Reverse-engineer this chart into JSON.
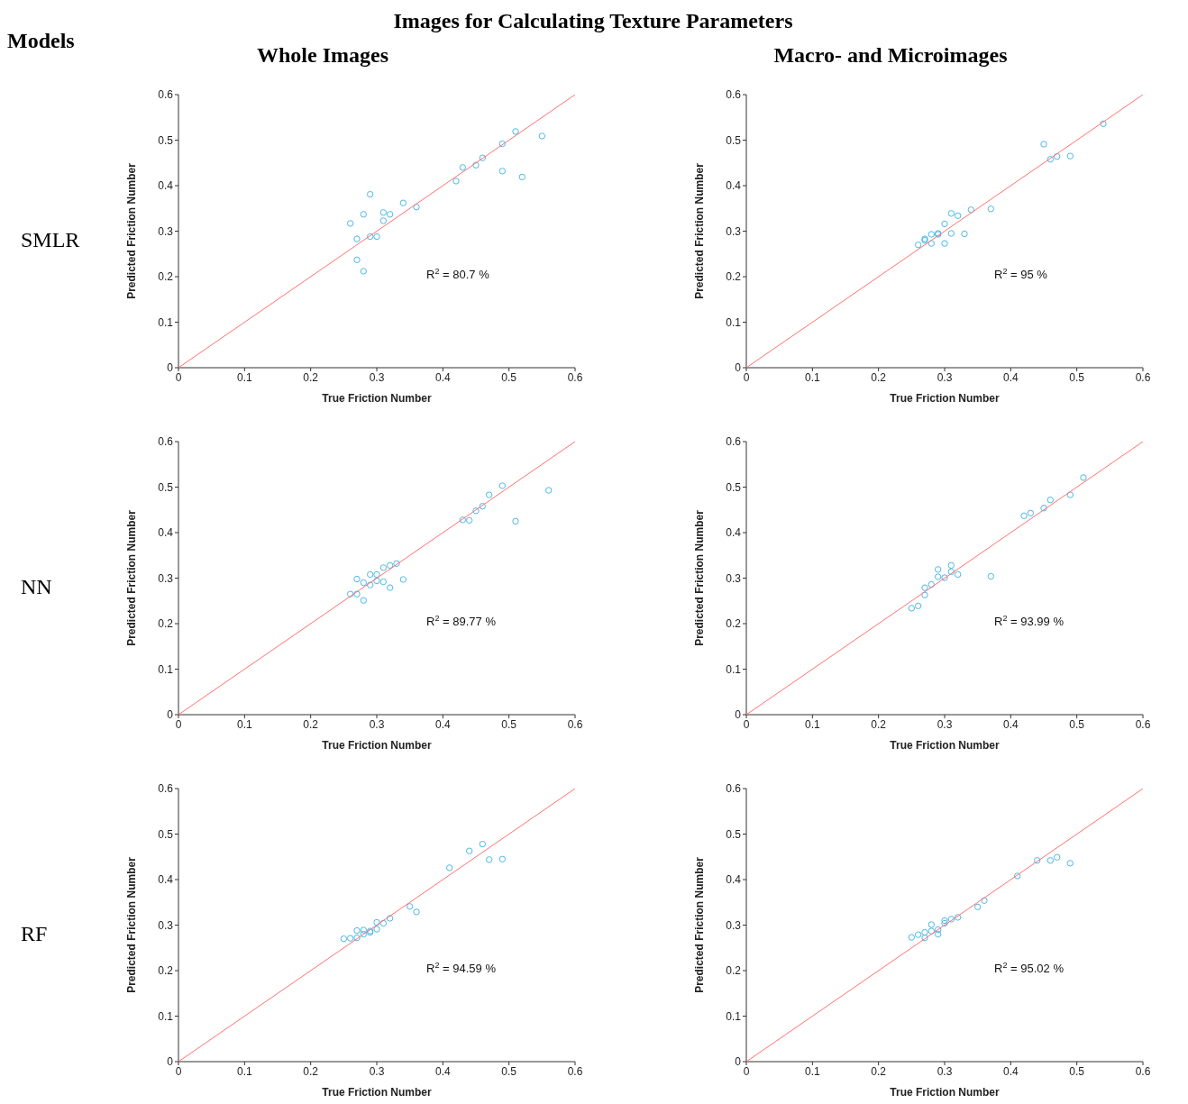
{
  "chart_data": [
    {
      "type": "scatter",
      "title": "Images for Calculating Texture Parameters",
      "subtitle": "Whole Images",
      "xlabel": "True Friction Number",
      "ylabel": "Predicted Friction Number",
      "annotations": [
        "Models",
        "SMLR",
        "R$^{2}$ = 80.7 %"
      ],
      "xlim": [
        0,
        0.6
      ],
      "ylim": [
        0,
        0.6
      ],
      "xticks": [
        0,
        0.1,
        0.2,
        0.3,
        0.4,
        0.5,
        0.6
      ],
      "yticks": [
        0,
        0.1,
        0.2,
        0.3,
        0.4,
        0.5,
        0.6
      ],
      "marker": "circle",
      "grid": false,
      "legend": false,
      "series": [
        {
          "type": "scatter",
          "color": "#4db8e8",
          "x": [
            0.26,
            0.27,
            0.27,
            0.28,
            0.28,
            0.29,
            0.29,
            0.3,
            0.31,
            0.31,
            0.32,
            0.34,
            0.36,
            0.42,
            0.43,
            0.45,
            0.46,
            0.49,
            0.49,
            0.51,
            0.52,
            0.55
          ],
          "values": [
            0.317,
            0.283,
            0.237,
            0.337,
            0.212,
            0.381,
            0.288,
            0.288,
            0.341,
            0.323,
            0.337,
            0.362,
            0.353,
            0.41,
            0.44,
            0.445,
            0.461,
            0.492,
            0.432,
            0.519,
            0.419,
            0.509
          ]
        },
        {
          "type": "line",
          "color": "#ff7070",
          "marker": "none",
          "x": [
            0,
            0.6
          ],
          "values": [
            0,
            0.6
          ]
        }
      ]
    },
    {
      "type": "scatter",
      "subtitle": "Macro- and Microimages",
      "xlabel": "True Friction Number",
      "ylabel": "Predicted Friction Number",
      "annotations": [
        "R$^{2}$ = 95 %"
      ],
      "xlim": [
        0,
        0.6
      ],
      "ylim": [
        0,
        0.6
      ],
      "xticks": [
        0,
        0.1,
        0.2,
        0.3,
        0.4,
        0.5,
        0.6
      ],
      "yticks": [
        0,
        0.1,
        0.2,
        0.3,
        0.4,
        0.5,
        0.6
      ],
      "marker": "circle",
      "grid": false,
      "legend": false,
      "series": [
        {
          "type": "scatter",
          "color": "#4db8e8",
          "x": [
            0.26,
            0.27,
            0.27,
            0.28,
            0.28,
            0.29,
            0.29,
            0.3,
            0.3,
            0.31,
            0.31,
            0.32,
            0.33,
            0.34,
            0.37,
            0.45,
            0.46,
            0.47,
            0.49,
            0.54
          ],
          "values": [
            0.27,
            0.28,
            0.283,
            0.293,
            0.273,
            0.293,
            0.295,
            0.316,
            0.273,
            0.339,
            0.295,
            0.334,
            0.294,
            0.347,
            0.349,
            0.491,
            0.458,
            0.464,
            0.465,
            0.536
          ]
        },
        {
          "type": "line",
          "color": "#ff7070",
          "marker": "none",
          "x": [
            0,
            0.6
          ],
          "values": [
            0,
            0.6
          ]
        }
      ]
    },
    {
      "type": "scatter",
      "xlabel": "True Friction Number",
      "ylabel": "Predicted Friction Number",
      "annotations": [
        "NN",
        "R$^{2}$ = 89.77 %"
      ],
      "xlim": [
        0,
        0.6
      ],
      "ylim": [
        0,
        0.6
      ],
      "xticks": [
        0,
        0.1,
        0.2,
        0.3,
        0.4,
        0.5,
        0.6
      ],
      "yticks": [
        0,
        0.1,
        0.2,
        0.3,
        0.4,
        0.5,
        0.6
      ],
      "marker": "circle",
      "grid": false,
      "legend": false,
      "series": [
        {
          "type": "scatter",
          "color": "#4db8e8",
          "x": [
            0.26,
            0.27,
            0.27,
            0.28,
            0.28,
            0.29,
            0.29,
            0.3,
            0.3,
            0.31,
            0.31,
            0.32,
            0.32,
            0.33,
            0.34,
            0.43,
            0.44,
            0.45,
            0.46,
            0.47,
            0.49,
            0.51,
            0.56
          ],
          "values": [
            0.265,
            0.298,
            0.265,
            0.29,
            0.251,
            0.308,
            0.285,
            0.308,
            0.294,
            0.323,
            0.292,
            0.328,
            0.279,
            0.332,
            0.297,
            0.428,
            0.427,
            0.448,
            0.458,
            0.483,
            0.503,
            0.425,
            0.493
          ]
        },
        {
          "type": "line",
          "color": "#ff7070",
          "marker": "none",
          "x": [
            0,
            0.6
          ],
          "values": [
            0,
            0.6
          ]
        }
      ]
    },
    {
      "type": "scatter",
      "xlabel": "True Friction Number",
      "ylabel": "Predicted Friction Number",
      "annotations": [
        "R$^{2}$ = 93.99 %"
      ],
      "xlim": [
        0,
        0.6
      ],
      "ylim": [
        0,
        0.6
      ],
      "xticks": [
        0,
        0.1,
        0.2,
        0.3,
        0.4,
        0.5,
        0.6
      ],
      "yticks": [
        0,
        0.1,
        0.2,
        0.3,
        0.4,
        0.5,
        0.6
      ],
      "marker": "circle",
      "grid": false,
      "legend": false,
      "series": [
        {
          "type": "scatter",
          "color": "#4db8e8",
          "x": [
            0.25,
            0.26,
            0.27,
            0.27,
            0.28,
            0.29,
            0.29,
            0.3,
            0.31,
            0.31,
            0.32,
            0.37,
            0.42,
            0.43,
            0.45,
            0.46,
            0.49,
            0.51
          ],
          "values": [
            0.234,
            0.239,
            0.263,
            0.279,
            0.286,
            0.319,
            0.303,
            0.301,
            0.328,
            0.314,
            0.308,
            0.304,
            0.437,
            0.443,
            0.454,
            0.472,
            0.483,
            0.521
          ]
        },
        {
          "type": "line",
          "color": "#ff7070",
          "marker": "none",
          "x": [
            0,
            0.6
          ],
          "values": [
            0,
            0.6
          ]
        }
      ]
    },
    {
      "type": "scatter",
      "xlabel": "True Friction Number",
      "ylabel": "Predicted Friction Number",
      "annotations": [
        "RF",
        "R$^{2}$ = 94.59 %"
      ],
      "xlim": [
        0,
        0.6
      ],
      "ylim": [
        0,
        0.6
      ],
      "xticks": [
        0,
        0.1,
        0.2,
        0.3,
        0.4,
        0.5,
        0.6
      ],
      "yticks": [
        0,
        0.1,
        0.2,
        0.3,
        0.4,
        0.5,
        0.6
      ],
      "marker": "circle",
      "grid": false,
      "legend": false,
      "series": [
        {
          "type": "scatter",
          "color": "#4db8e8",
          "x": [
            0.25,
            0.26,
            0.27,
            0.27,
            0.28,
            0.28,
            0.29,
            0.29,
            0.3,
            0.3,
            0.31,
            0.32,
            0.35,
            0.36,
            0.41,
            0.44,
            0.46,
            0.47,
            0.49
          ],
          "values": [
            0.27,
            0.271,
            0.272,
            0.288,
            0.289,
            0.28,
            0.284,
            0.287,
            0.306,
            0.291,
            0.304,
            0.315,
            0.341,
            0.329,
            0.426,
            0.463,
            0.478,
            0.444,
            0.445
          ]
        },
        {
          "type": "line",
          "color": "#ff7070",
          "marker": "none",
          "x": [
            0,
            0.6
          ],
          "values": [
            0,
            0.6
          ]
        }
      ]
    },
    {
      "type": "scatter",
      "xlabel": "True Friction Number",
      "ylabel": "Predicted Friction Number",
      "annotations": [
        "R$^{2}$ = 95.02 %"
      ],
      "xlim": [
        0,
        0.6
      ],
      "ylim": [
        0,
        0.6
      ],
      "xticks": [
        0,
        0.1,
        0.2,
        0.3,
        0.4,
        0.5,
        0.6
      ],
      "yticks": [
        0,
        0.1,
        0.2,
        0.3,
        0.4,
        0.5,
        0.6
      ],
      "marker": "circle",
      "grid": false,
      "legend": false,
      "series": [
        {
          "type": "scatter",
          "color": "#4db8e8",
          "x": [
            0.25,
            0.26,
            0.27,
            0.27,
            0.28,
            0.28,
            0.29,
            0.29,
            0.3,
            0.3,
            0.31,
            0.32,
            0.35,
            0.36,
            0.41,
            0.44,
            0.46,
            0.47,
            0.49
          ],
          "values": [
            0.273,
            0.279,
            0.284,
            0.272,
            0.301,
            0.287,
            0.28,
            0.29,
            0.304,
            0.31,
            0.313,
            0.317,
            0.34,
            0.354,
            0.408,
            0.442,
            0.442,
            0.449,
            0.436
          ]
        },
        {
          "type": "line",
          "color": "#ff7070",
          "marker": "none",
          "x": [
            0,
            0.6
          ],
          "values": [
            0,
            0.6
          ]
        }
      ]
    }
  ]
}
